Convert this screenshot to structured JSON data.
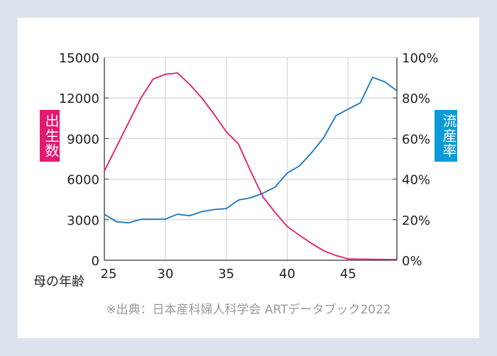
{
  "chart_data": {
    "type": "line",
    "x": [
      25,
      26,
      27,
      28,
      29,
      30,
      31,
      32,
      33,
      34,
      35,
      36,
      37,
      38,
      39,
      40,
      41,
      42,
      43,
      44,
      45,
      46,
      47,
      48,
      49
    ],
    "xlim": [
      25,
      49
    ],
    "xticks": [
      "25",
      "30",
      "35",
      "40",
      "45"
    ],
    "xlabel": "母の年齢",
    "y_left": {
      "label": "出生数",
      "ylim": [
        0,
        15000
      ],
      "ticks": [
        "0",
        "3000",
        "6000",
        "9000",
        "12000",
        "15000"
      ],
      "color": "#e5186f"
    },
    "y_right": {
      "label": "流産率",
      "ylim": [
        0,
        100
      ],
      "ticks": [
        "0%",
        "20%",
        "40%",
        "60%",
        "80%",
        "100%"
      ],
      "color": "#0b9ad9"
    },
    "series": [
      {
        "name": "出生数",
        "axis": "left",
        "color": "#e5186f",
        "values": [
          6600,
          8400,
          10200,
          12000,
          13400,
          13750,
          13850,
          13000,
          12000,
          10800,
          9500,
          8600,
          6600,
          4700,
          3550,
          2500,
          1850,
          1250,
          700,
          350,
          100,
          80,
          70,
          60,
          50
        ]
      },
      {
        "name": "流産率",
        "axis": "right",
        "color": "#1a74c0",
        "values": [
          22.7,
          19,
          18.5,
          20.2,
          20.2,
          20.3,
          22.7,
          22,
          24,
          25,
          25.5,
          29.7,
          30.8,
          33,
          36,
          43,
          46.5,
          53,
          60.5,
          71.3,
          74.5,
          77.6,
          90.2,
          88,
          83.6
        ]
      }
    ],
    "grid": true,
    "source": "※出典：日本産科婦人科学会 ARTデータブック2022"
  }
}
